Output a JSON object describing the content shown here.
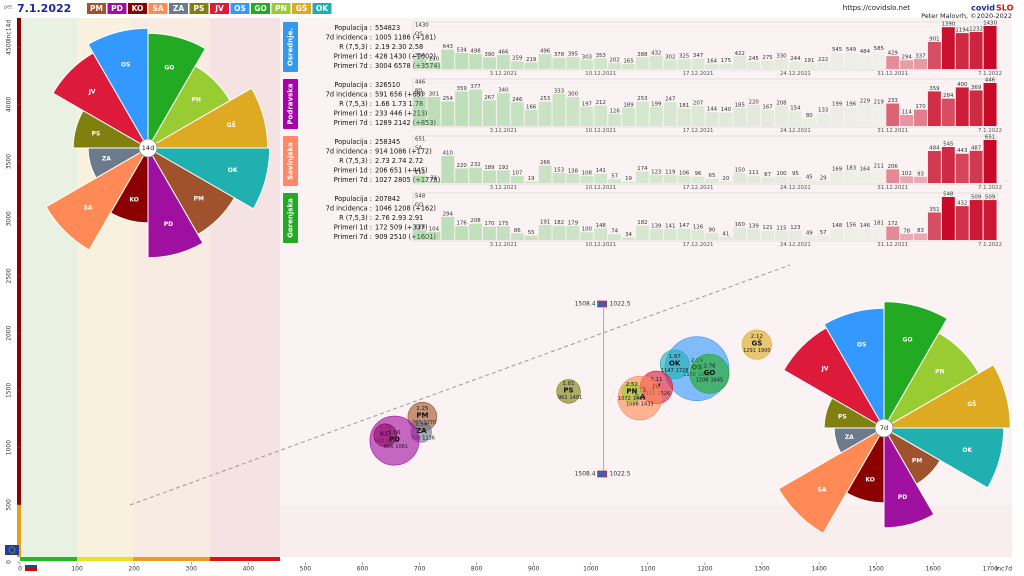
{
  "header": {
    "day": "pet",
    "date": "7.1.2022",
    "url": "https://covidslo.net",
    "brand": "covid",
    "brand_accent": "SLO",
    "author": "Peter Malovrh, ©2020-2022"
  },
  "legend": [
    {
      "name": "PM",
      "color": "#a0522d"
    },
    {
      "name": "PD",
      "color": "#a010a0"
    },
    {
      "name": "KO",
      "color": "#8b0000"
    },
    {
      "name": "SA",
      "color": "#ff8a55"
    },
    {
      "name": "ZA",
      "color": "#6b7b8c"
    },
    {
      "name": "PS",
      "color": "#808010"
    },
    {
      "name": "JV",
      "color": "#dd1a3a"
    },
    {
      "name": "OS",
      "color": "#3399ff"
    },
    {
      "name": "GO",
      "color": "#22aa22"
    },
    {
      "name": "PN",
      "color": "#99cc33"
    },
    {
      "name": "GŠ",
      "color": "#ddaa22"
    },
    {
      "name": "OK",
      "color": "#20b0b0"
    }
  ],
  "chart_data": [
    {
      "type": "bubble",
      "xlabel": "Inc7d",
      "ylabel": "Inc14d",
      "xlim": [
        0,
        1738
      ],
      "ylim": [
        0,
        4755
      ],
      "xticks": [
        0,
        100,
        200,
        300,
        400,
        500,
        600,
        700,
        800,
        900,
        1000,
        1100,
        1200,
        1300,
        1400,
        1500,
        1600,
        1700
      ],
      "yticks": [
        0,
        500,
        1000,
        1500,
        2000,
        2500,
        3000,
        3500,
        4000,
        4500
      ],
      "annotation": {
        "x": 1022.5,
        "y": 1508.4
      },
      "series": [
        {
          "name": "OS",
          "color": "#3399ff",
          "x": 1186,
          "y": 1690,
          "size": 554823,
          "r": "2.19"
        },
        {
          "name": "GO",
          "color": "#22aa22",
          "x": 1208,
          "y": 1645,
          "size": 207842,
          "r": "2.76"
        },
        {
          "name": "OK",
          "color": "#20b0b0",
          "x": 1147,
          "y": 1728,
          "size": 115000,
          "r": "1.97"
        },
        {
          "name": "JV",
          "color": "#dd1a3a",
          "x": 1115,
          "y": 1526,
          "size": 145000,
          "r": "2.11"
        },
        {
          "name": "SA",
          "color": "#ff8a55",
          "x": 1086,
          "y": 1433,
          "size": 258345,
          "r": "2.73"
        },
        {
          "name": "PN",
          "color": "#99cc33",
          "x": 1072,
          "y": 1483,
          "size": 53000,
          "r": "2.52"
        },
        {
          "name": "GŠ",
          "color": "#ddaa22",
          "x": 1291,
          "y": 1900,
          "size": 118000,
          "r": "2.12"
        },
        {
          "name": "PS",
          "color": "#808010",
          "x": 961,
          "y": 1491,
          "size": 76000,
          "r": "1.81"
        },
        {
          "name": "PM",
          "color": "#a0522d",
          "x": 705,
          "y": 1270,
          "size": 114000,
          "r": "1.25"
        },
        {
          "name": "ZA",
          "color": "#6b7b8c",
          "x": 703,
          "y": 1136,
          "size": 57000,
          "r": "1.54"
        },
        {
          "name": "KO",
          "color": "#8b0000",
          "x": 640,
          "y": 1108,
          "size": 71000,
          "r": "1.72"
        },
        {
          "name": "PD",
          "color": "#a010a0",
          "x": 656,
          "y": 1061,
          "size": 326510,
          "r": "1.66"
        }
      ]
    },
    {
      "type": "rose",
      "title": "14d",
      "rlim": [
        0,
        2000
      ],
      "categories": [
        "GO",
        "PN",
        "GŠ",
        "OK",
        "PM",
        "PD",
        "KO",
        "SA",
        "ZA",
        "PS",
        "JV",
        "OS"
      ],
      "colors": [
        "#22aa22",
        "#99cc33",
        "#ddaa22",
        "#20b0b0",
        "#a0522d",
        "#a010a0",
        "#8b0000",
        "#ff8a55",
        "#6b7b8c",
        "#808010",
        "#dd1a3a",
        "#3399ff"
      ],
      "values": [
        1725,
        1425,
        1800,
        1830,
        1500,
        1650,
        1125,
        1770,
        900,
        1125,
        1650,
        1800
      ]
    },
    {
      "type": "rose",
      "title": "7d",
      "rlim": [
        0,
        2000
      ],
      "categories": [
        "GO",
        "PN",
        "GŠ",
        "OK",
        "PM",
        "PD",
        "KO",
        "SA",
        "ZA",
        "PS",
        "JV",
        "OS"
      ],
      "colors": [
        "#22aa22",
        "#99cc33",
        "#ddaa22",
        "#20b0b0",
        "#a0522d",
        "#a010a0",
        "#8b0000",
        "#ff8a55",
        "#6b7b8c",
        "#808010",
        "#dd1a3a",
        "#3399ff"
      ],
      "values": [
        1900,
        1650,
        1900,
        1800,
        975,
        1500,
        1125,
        1830,
        750,
        900,
        1740,
        1800
      ]
    },
    {
      "type": "bar",
      "title": "Osrednje.",
      "label": "OS",
      "color": "#3399ee",
      "ylim": [
        0,
        1430
      ],
      "yticks": [
        1430
      ],
      "stats": [
        {
          "label": "Populacija :",
          "value": "554823"
        },
        {
          "label": "7d incidenca :",
          "value": "1005 1186 (+181)"
        },
        {
          "label": "R (7,5,3) :",
          "value": "2.19 2.30 2.58"
        },
        {
          "label": "Primeri 1d :",
          "value": "428 1430 (+1002)"
        },
        {
          "label": "Primeri 7d :",
          "value": "3004 6578 (+3574)"
        }
      ],
      "categories": [
        null,
        null,
        null,
        null,
        null,
        null,
        "3.12.2021",
        null,
        null,
        null,
        null,
        null,
        null,
        "10.12.2021",
        null,
        null,
        null,
        null,
        null,
        null,
        "17.12.2021",
        null,
        null,
        null,
        null,
        null,
        null,
        "24.12.2021",
        null,
        null,
        null,
        null,
        null,
        null,
        "31.12.2021",
        null,
        null,
        null,
        null,
        null,
        null,
        "7.1.2022"
      ],
      "values": [
        354,
        230,
        643,
        534,
        498,
        390,
        466,
        259,
        219,
        496,
        378,
        395,
        303,
        353,
        202,
        165,
        388,
        432,
        302,
        325,
        347,
        164,
        175,
        422,
        245,
        275,
        330,
        244,
        191,
        222,
        545,
        549,
        484,
        585,
        429,
        294,
        337,
        901,
        1390,
        1194,
        1232,
        1430
      ]
    },
    {
      "type": "bar",
      "title": "Podravska",
      "label": "PD",
      "color": "#aa00aa",
      "ylim": [
        0,
        446
      ],
      "yticks": [
        446
      ],
      "stats": [
        {
          "label": "Populacija :",
          "value": "326510"
        },
        {
          "label": "7d incidenca :",
          "value": "591 656 (+65)"
        },
        {
          "label": "R (7,5,3) :",
          "value": "1.66 1.73 1.78"
        },
        {
          "label": "Primeri 1d :",
          "value": "233 446 (+213)"
        },
        {
          "label": "Primeri 7d :",
          "value": "1289 2142 (+853)"
        }
      ],
      "categories": [
        null,
        null,
        null,
        null,
        null,
        null,
        "3.12.2021",
        null,
        null,
        null,
        null,
        null,
        null,
        "10.12.2021",
        null,
        null,
        null,
        null,
        null,
        null,
        "17.12.2021",
        null,
        null,
        null,
        null,
        null,
        null,
        "24.12.2021",
        null,
        null,
        null,
        null,
        null,
        null,
        "31.12.2021",
        null,
        null,
        null,
        null,
        null,
        null,
        "7.1.2022"
      ],
      "values": [
        303,
        301,
        254,
        359,
        377,
        267,
        340,
        246,
        166,
        253,
        333,
        300,
        197,
        212,
        126,
        189,
        253,
        199,
        247,
        181,
        207,
        144,
        140,
        185,
        220,
        167,
        208,
        154,
        80,
        133,
        199,
        196,
        229,
        219,
        233,
        114,
        170,
        359,
        284,
        400,
        369,
        446
      ]
    },
    {
      "type": "bar",
      "title": "Savinjska",
      "label": "SA",
      "color": "#ff8866",
      "ylim": [
        0,
        651
      ],
      "yticks": [
        651
      ],
      "stats": [
        {
          "label": "Populacija :",
          "value": "258345"
        },
        {
          "label": "7d incidenca :",
          "value": "914 1086 (+172)"
        },
        {
          "label": "R (7,5,3) :",
          "value": "2.73 2.74 2.72"
        },
        {
          "label": "Primeri 1d :",
          "value": "206 651 (+445)"
        },
        {
          "label": "Primeri 7d :",
          "value": "1027 2805 (+1778)"
        }
      ],
      "categories": [
        null,
        null,
        null,
        null,
        null,
        null,
        "3.12.2021",
        null,
        null,
        null,
        null,
        null,
        null,
        "10.12.2021",
        null,
        null,
        null,
        null,
        null,
        null,
        "17.12.2021",
        null,
        null,
        null,
        null,
        null,
        null,
        "24.12.2021",
        null,
        null,
        null,
        null,
        null,
        null,
        "31.12.2021",
        null,
        null,
        null,
        null,
        null,
        null,
        "7.1.2022"
      ],
      "values": [
        113,
        31,
        410,
        220,
        232,
        189,
        192,
        107,
        19,
        266,
        153,
        138,
        108,
        141,
        57,
        19,
        174,
        123,
        119,
        106,
        96,
        65,
        20,
        150,
        111,
        87,
        100,
        95,
        45,
        29,
        169,
        183,
        164,
        211,
        206,
        102,
        93,
        484,
        545,
        443,
        487,
        651
      ]
    },
    {
      "type": "bar",
      "title": "Gorenjska",
      "label": "GO",
      "color": "#22aa22",
      "ylim": [
        0,
        548
      ],
      "yticks": [
        548
      ],
      "stats": [
        {
          "label": "Populacija :",
          "value": "207842"
        },
        {
          "label": "7d incidenca :",
          "value": "1046 1208 (+162)"
        },
        {
          "label": "R (7,5,3) :",
          "value": "2.76 2.93 2.91"
        },
        {
          "label": "Primeri 1d :",
          "value": "172 509 (+337)"
        },
        {
          "label": "Primeri 7d :",
          "value": "909 2510 (+1601)"
        }
      ],
      "categories": [
        null,
        null,
        null,
        null,
        null,
        null,
        "3.12.2021",
        null,
        null,
        null,
        null,
        null,
        null,
        "10.12.2021",
        null,
        null,
        null,
        null,
        null,
        null,
        "17.12.2021",
        null,
        null,
        null,
        null,
        null,
        null,
        "24.12.2021",
        null,
        null,
        null,
        null,
        null,
        null,
        "31.12.2021",
        null,
        null,
        null,
        null,
        null,
        null,
        "7.1.2022"
      ],
      "values": [
        128,
        104,
        294,
        176,
        208,
        170,
        175,
        86,
        55,
        191,
        182,
        179,
        100,
        148,
        74,
        34,
        182,
        139,
        141,
        147,
        126,
        90,
        41,
        160,
        139,
        121,
        115,
        123,
        49,
        57,
        148,
        156,
        146,
        181,
        172,
        78,
        83,
        351,
        548,
        432,
        509,
        509
      ]
    }
  ]
}
